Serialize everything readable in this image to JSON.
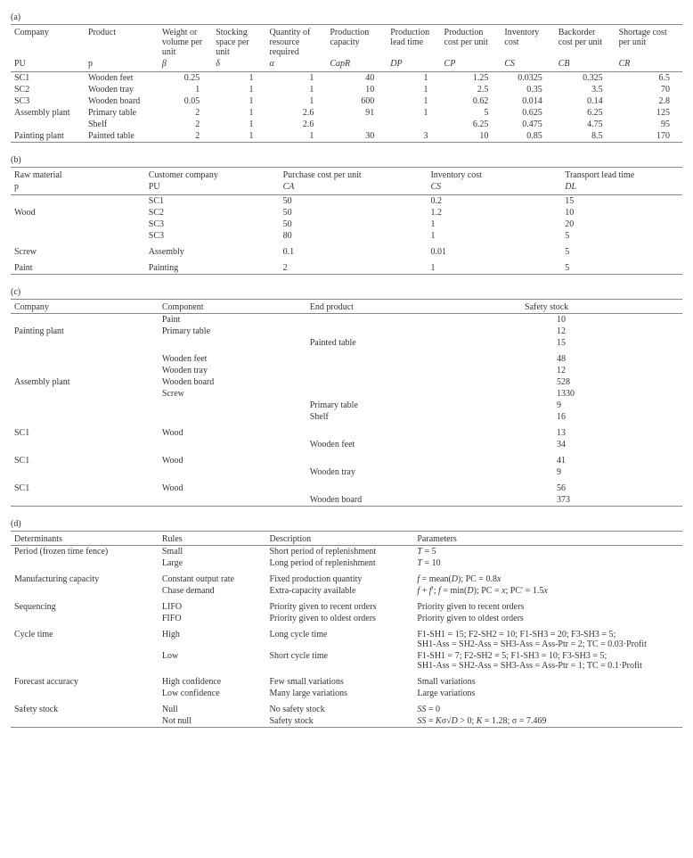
{
  "tableA": {
    "label": "(a)",
    "headers1": [
      "Company",
      "Product",
      "Weight or volume per unit",
      "Stocking space per unit",
      "Quantity of resource required",
      "Production capacity",
      "Production lead time",
      "Production cost per unit",
      "Inventory cost",
      "Backorder cost per unit",
      "Shortage cost per unit"
    ],
    "headers2": [
      "PU",
      "p",
      "β",
      "δ",
      "α",
      "CapR",
      "DP",
      "CP",
      "CS",
      "CB",
      "CR"
    ],
    "rows": [
      [
        "SC1",
        "Wooden feet",
        "0.25",
        "1",
        "1",
        "40",
        "1",
        "1.25",
        "0.0325",
        "0.325",
        "6.5"
      ],
      [
        "SC2",
        "Wooden tray",
        "1",
        "1",
        "1",
        "10",
        "1",
        "2.5",
        "0.35",
        "3.5",
        "70"
      ],
      [
        "SC3",
        "Wooden board",
        "0.05",
        "1",
        "1",
        "600",
        "1",
        "0.62",
        "0.014",
        "0.14",
        "2.8"
      ],
      [
        "Assembly plant",
        "Primary table",
        "2",
        "1",
        "2.6",
        "91",
        "1",
        "5",
        "0.625",
        "6.25",
        "125"
      ],
      [
        "",
        "Shelf",
        "2",
        "1",
        "2.6",
        "",
        "",
        "6.25",
        "0.475",
        "4.75",
        "95"
      ],
      [
        "Painting plant",
        "Painted table",
        "2",
        "1",
        "1",
        "30",
        "3",
        "10",
        "0.85",
        "8.5",
        "170"
      ]
    ],
    "numCols": [
      2,
      3,
      4,
      5,
      6,
      7,
      8,
      9,
      10
    ]
  },
  "tableB": {
    "label": "(b)",
    "headers1": [
      "Raw material",
      "Customer company",
      "Purchase cost per unit",
      "Inventory cost",
      "Transport lead time"
    ],
    "headers2": [
      "p",
      "PU",
      "CA",
      "CS",
      "DL"
    ],
    "rows": [
      [
        "",
        "SC1",
        "50",
        "0.2",
        "15"
      ],
      [
        "Wood",
        "SC2",
        "50",
        "1.2",
        "10"
      ],
      [
        "",
        "SC3",
        "50",
        "1",
        "20"
      ],
      [
        "",
        "SC3",
        "80",
        "1",
        "5"
      ],
      [
        "Screw",
        "Assembly",
        "0.1",
        "0.01",
        "5"
      ],
      [
        "Paint",
        "Painting",
        "2",
        "1",
        "5"
      ]
    ],
    "gapRows": [
      4,
      5
    ]
  },
  "tableC": {
    "label": "(c)",
    "headers": [
      "Company",
      "Component",
      "End product",
      "Safety stock"
    ],
    "rows": [
      [
        "",
        "Paint",
        "",
        "10"
      ],
      [
        "Painting plant",
        "Primary table",
        "",
        "12"
      ],
      [
        "",
        "",
        "Painted table",
        "15"
      ],
      [
        "",
        "Wooden feet",
        "",
        "48"
      ],
      [
        "",
        "Wooden tray",
        "",
        "12"
      ],
      [
        "Assembly plant",
        "Wooden board",
        "",
        "528"
      ],
      [
        "",
        "Screw",
        "",
        "1330"
      ],
      [
        "",
        "",
        "Primary table",
        "9"
      ],
      [
        "",
        "",
        "Shelf",
        "16"
      ],
      [
        "SC1",
        "Wood",
        "",
        "13"
      ],
      [
        "",
        "",
        "Wooden feet",
        "34"
      ],
      [
        "SC1",
        "Wood",
        "",
        "41"
      ],
      [
        "",
        "",
        "Wooden tray",
        "9"
      ],
      [
        "SC1",
        "Wood",
        "",
        "56"
      ],
      [
        "",
        "",
        "Wooden board",
        "373"
      ]
    ],
    "gapRows": [
      3,
      9,
      11,
      13
    ]
  },
  "tableD": {
    "label": "(d)",
    "headers": [
      "Determinants",
      "Rules",
      "Description",
      "Parameters"
    ],
    "rows": [
      [
        "Period (frozen time fence)",
        "Small",
        "Short period of replenishment",
        "<i>T</i> = 5"
      ],
      [
        "",
        "Large",
        "Long period of replenishment",
        "<i>T</i> = 10"
      ],
      [
        "Manufacturing capacity",
        "Constant output rate",
        "Fixed production quantity",
        "<i>f</i> = mean(<i>D</i>); PC = 0.8<i>x</i>"
      ],
      [
        "",
        "Chase demand",
        "Extra-capacity available",
        "<i>f</i> + <i>f</i>′; <i>f</i> = min(<i>D</i>); PC = <i>x</i>; PC′ = 1.5<i>x</i>"
      ],
      [
        "Sequencing",
        "LIFO",
        "Priority given to recent orders",
        "Priority given to recent orders"
      ],
      [
        "",
        "FIFO",
        "Priority given to oldest orders",
        "Priority given to oldest orders"
      ],
      [
        "Cycle time",
        "High",
        "Long cycle time",
        "F1-SH1 = 15; F2-SH2 = 10; F1-SH3 = 20; F3-SH3 = 5;<br>SH1-Ass = SH2-Ass = SH3-Ass = Ass-Ptr = 2; TC = 0.03·Profit"
      ],
      [
        "",
        "Low",
        "Short cycle time",
        "F1-SH1 = 7; F2-SH2 = 5; F1-SH3 = 10; F3-SH3 = 5;<br>SH1-Ass = SH2-Ass = SH3-Ass = Ass-Ptr = 1; TC = 0.1·Profit"
      ],
      [
        "Forecast accuracy",
        "High confidence",
        "Few small variations",
        "Small variations"
      ],
      [
        "",
        "Low confidence",
        "Many large variations",
        "Large variations"
      ],
      [
        "Safety stock",
        "Null",
        "No safety stock",
        "<i>SS</i> = 0"
      ],
      [
        "",
        "Not null",
        "Safety stock",
        "<i>SS</i> = <i>K</i>σ√<i>D</i> &gt; 0; <i>K</i> = 1.28; σ = 7.469"
      ]
    ],
    "gapRows": [
      2,
      4,
      6,
      8,
      10
    ],
    "colWidths": [
      "22%",
      "16%",
      "22%",
      "40%"
    ]
  },
  "colWidthsA": [
    "11%",
    "11%",
    "8%",
    "8%",
    "9%",
    "9%",
    "8%",
    "9%",
    "8%",
    "9%",
    "10%"
  ],
  "colWidthsB": [
    "20%",
    "20%",
    "22%",
    "20%",
    "18%"
  ],
  "colWidthsC": [
    "22%",
    "22%",
    "32%",
    "24%"
  ]
}
